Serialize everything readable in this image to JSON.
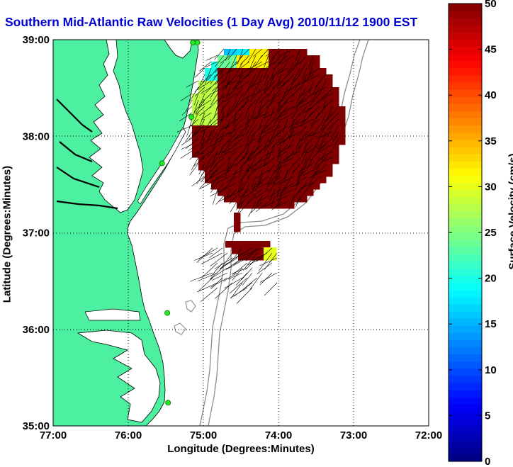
{
  "title": "Southern Mid-Atlantic Raw Velocities (1 Day Avg) 2010/11/12 1900 EST",
  "xaxis": {
    "label": "Longitude (Degrees:Minutes)",
    "ticks": [
      "77:00",
      "76:00",
      "75:00",
      "74:00",
      "73:00",
      "72:00"
    ],
    "range": [
      77,
      72
    ]
  },
  "yaxis": {
    "label": "Latitude (Degrees:Minutes)",
    "ticks": [
      "39:00",
      "38:00",
      "37:00",
      "36:00",
      "35:00"
    ],
    "range": [
      35,
      39
    ]
  },
  "colorbar": {
    "label": "Surface Velocity (cm/s)",
    "ticks": [
      "0",
      "5",
      "10",
      "15",
      "20",
      "25",
      "30",
      "35",
      "40",
      "45",
      "50"
    ],
    "range": [
      0,
      50
    ],
    "colormap": "jet"
  },
  "colors": {
    "land": "#4cf0a0",
    "water": "#ffffff",
    "coastline": "#000000",
    "bathymetry": "#8c8c8c",
    "station": "#22e822",
    "vector": "#000000",
    "grid": "#000000",
    "title": "#0000d0"
  },
  "stations": [
    {
      "lon": 75.08,
      "lat": 38.97
    },
    {
      "lon": 75.14,
      "lat": 38.97
    },
    {
      "lon": 75.16,
      "lat": 38.2
    },
    {
      "lon": 75.55,
      "lat": 37.72
    },
    {
      "lon": 75.48,
      "lat": 36.17
    },
    {
      "lon": 75.47,
      "lat": 35.24
    }
  ]
}
